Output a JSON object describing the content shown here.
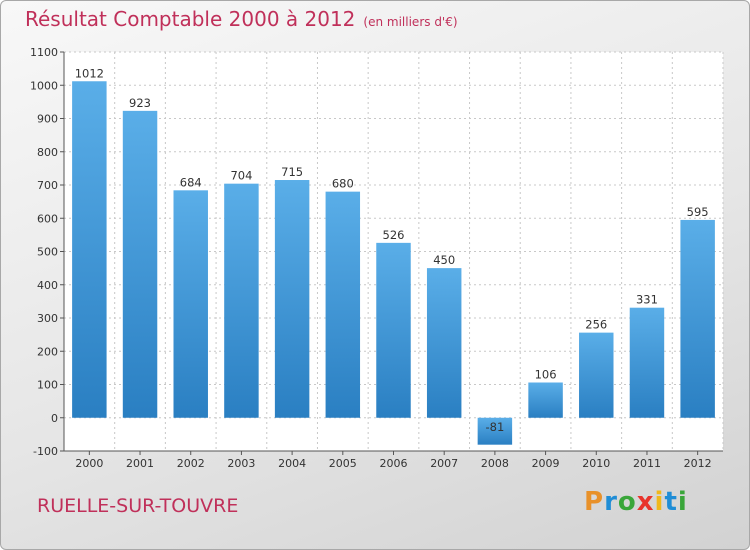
{
  "chart_data": {
    "type": "bar",
    "title": "Résultat Comptable 2000 à 2012",
    "subtitle": "(en milliers d'€)",
    "categories": [
      "2000",
      "2001",
      "2002",
      "2003",
      "2004",
      "2005",
      "2006",
      "2007",
      "2008",
      "2009",
      "2010",
      "2011",
      "2012"
    ],
    "values": [
      1012,
      923,
      684,
      704,
      715,
      680,
      526,
      450,
      -81,
      106,
      256,
      331,
      595
    ],
    "ylim": [
      -100,
      1100
    ],
    "yticks": [
      -100,
      0,
      100,
      200,
      300,
      400,
      500,
      600,
      700,
      800,
      900,
      1000,
      1100
    ],
    "xlabel": "",
    "ylabel": "",
    "grid": true,
    "bar_color_top": "#5aaee8",
    "bar_color_bottom": "#2a7fc2"
  },
  "footer": {
    "city": "RUELLE-SUR-TOUVRE",
    "logo": "Proxiti"
  }
}
